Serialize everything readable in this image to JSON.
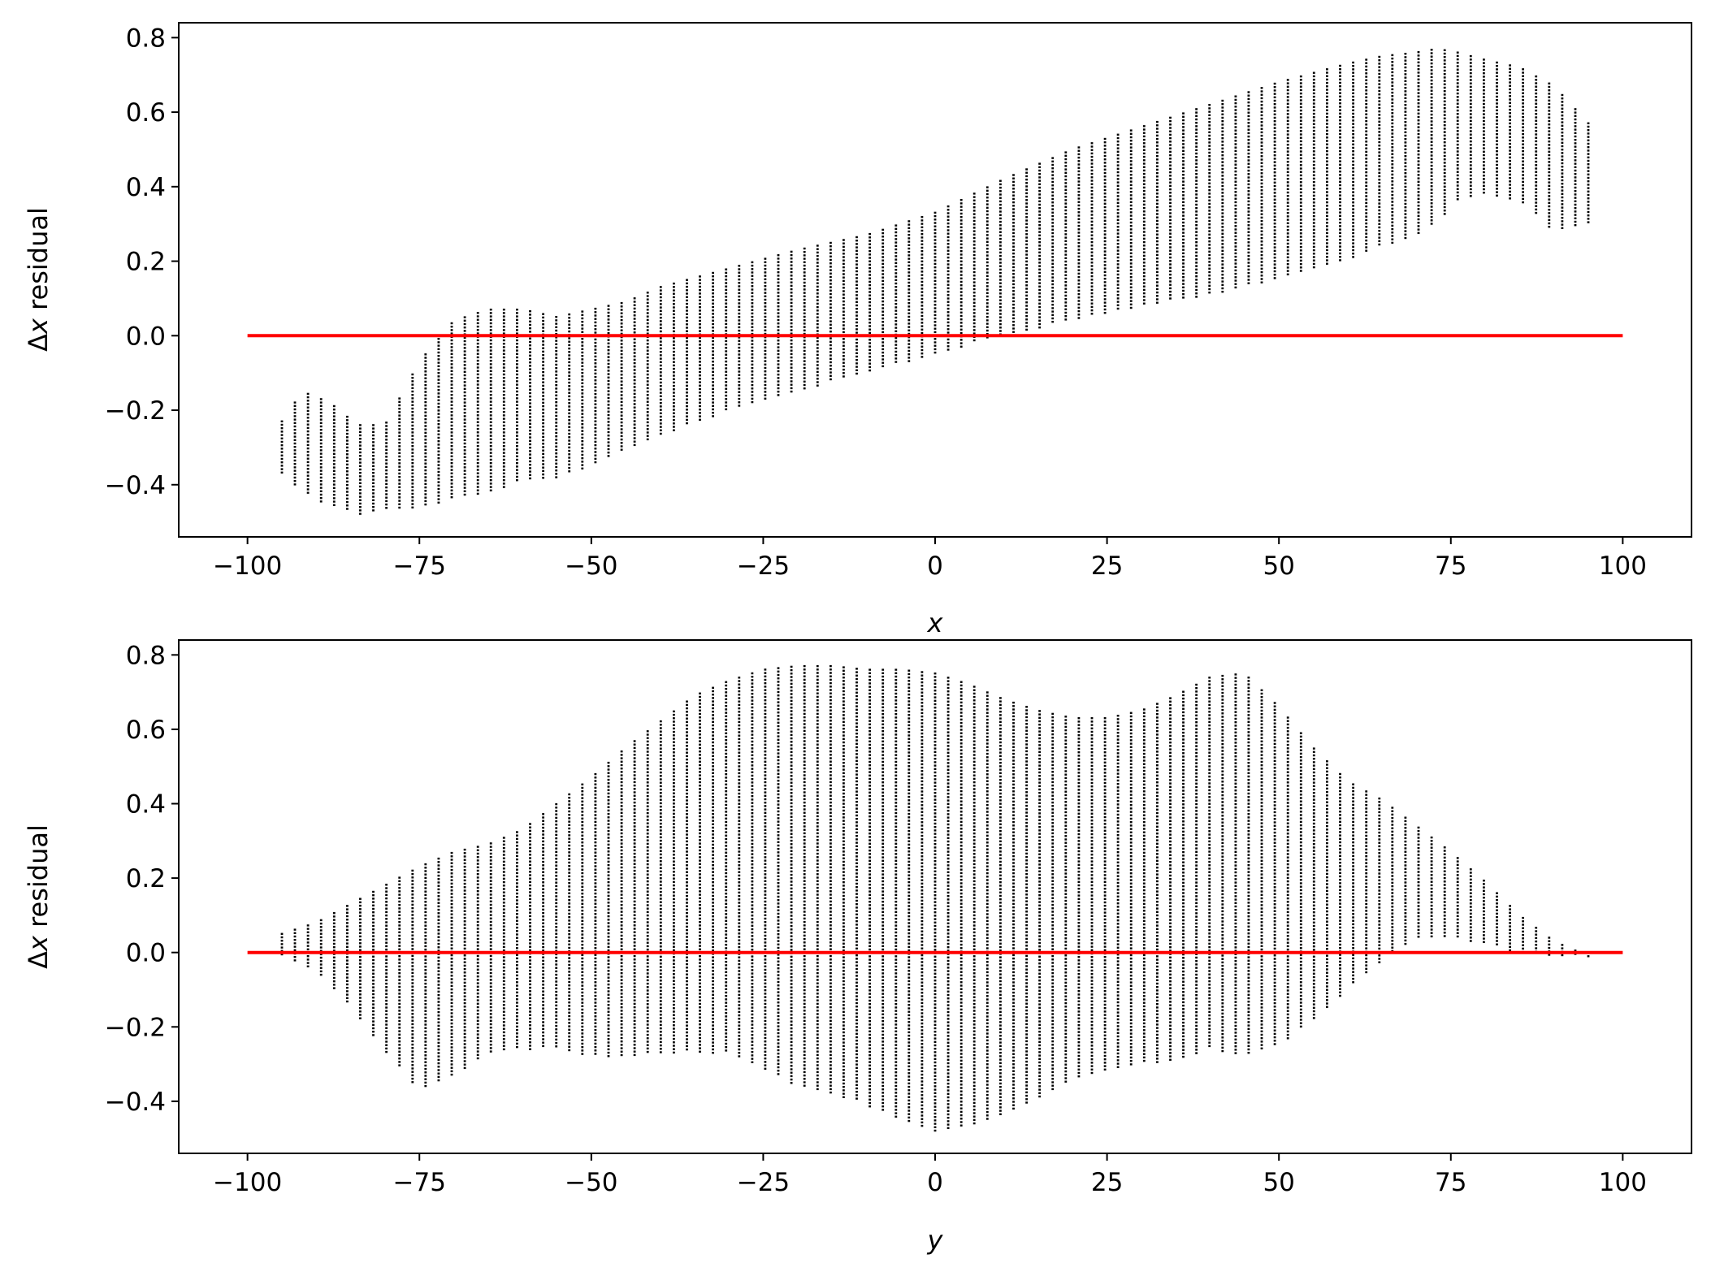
{
  "chart_data": [
    {
      "type": "scatter",
      "xlabel": "x",
      "ylabel_prefix": "Δ",
      "ylabel_var": "x",
      "ylabel_suffix": " residual",
      "xlim": [
        -110,
        110
      ],
      "ylim": [
        -0.54,
        0.84
      ],
      "xticks": [
        -100,
        -75,
        -50,
        -25,
        0,
        25,
        50,
        75,
        100
      ],
      "yticks": [
        -0.4,
        -0.2,
        0.0,
        0.2,
        0.4,
        0.6,
        0.8
      ],
      "xtick_labels": [
        "−100",
        "−75",
        "−50",
        "−25",
        "0",
        "25",
        "50",
        "75",
        "100"
      ],
      "ytick_labels": [
        "−0.4",
        "−0.2",
        "0.0",
        "0.2",
        "0.4",
        "0.6",
        "0.8"
      ],
      "point_color": "#000000",
      "columns": {
        "x_start": -95,
        "x_end": 95,
        "step": 1.9,
        "envelope_x": [
          -95,
          -92,
          -88,
          -84,
          -80,
          -75,
          -70,
          -65,
          -60,
          -55,
          -50,
          -45,
          -40,
          -30,
          -20,
          -10,
          0,
          10,
          20,
          30,
          40,
          50,
          60,
          65,
          70,
          73,
          76,
          80,
          85,
          90,
          95
        ],
        "envelope_upper": [
          -0.23,
          -0.15,
          -0.18,
          -0.24,
          -0.24,
          -0.07,
          0.04,
          0.07,
          0.07,
          0.05,
          0.07,
          0.09,
          0.13,
          0.18,
          0.23,
          0.27,
          0.33,
          0.42,
          0.5,
          0.56,
          0.62,
          0.68,
          0.73,
          0.75,
          0.76,
          0.77,
          0.76,
          0.74,
          0.72,
          0.67,
          0.57
        ],
        "envelope_lower": [
          -0.37,
          -0.42,
          -0.46,
          -0.48,
          -0.47,
          -0.46,
          -0.44,
          -0.42,
          -0.39,
          -0.38,
          -0.35,
          -0.31,
          -0.27,
          -0.2,
          -0.15,
          -0.1,
          -0.05,
          0.0,
          0.04,
          0.08,
          0.11,
          0.15,
          0.2,
          0.24,
          0.27,
          0.3,
          0.36,
          0.38,
          0.36,
          0.28,
          0.3
        ]
      },
      "reference_line": {
        "x": [
          -100,
          100
        ],
        "y": [
          0.0,
          0.0
        ],
        "color": "#ff0000"
      }
    },
    {
      "type": "scatter",
      "xlabel": "y",
      "ylabel_prefix": "Δ",
      "ylabel_var": "x",
      "ylabel_suffix": " residual",
      "xlim": [
        -110,
        110
      ],
      "ylim": [
        -0.54,
        0.84
      ],
      "xticks": [
        -100,
        -75,
        -50,
        -25,
        0,
        25,
        50,
        75,
        100
      ],
      "yticks": [
        -0.4,
        -0.2,
        0.0,
        0.2,
        0.4,
        0.6,
        0.8
      ],
      "xtick_labels": [
        "−100",
        "−75",
        "−50",
        "−25",
        "0",
        "25",
        "50",
        "75",
        "100"
      ],
      "ytick_labels": [
        "−0.4",
        "−0.2",
        "0.0",
        "0.2",
        "0.4",
        "0.6",
        "0.8"
      ],
      "point_color": "#000000",
      "columns": {
        "x_start": -95,
        "x_end": 95,
        "step": 1.9,
        "envelope_x": [
          -95,
          -90,
          -85,
          -80,
          -75,
          -70,
          -65,
          -60,
          -55,
          -50,
          -45,
          -40,
          -35,
          -30,
          -25,
          -20,
          -15,
          -10,
          -5,
          0,
          5,
          10,
          15,
          20,
          25,
          30,
          35,
          40,
          45,
          50,
          55,
          60,
          65,
          70,
          75,
          80,
          85,
          90,
          95
        ],
        "envelope_upper": [
          0.05,
          0.08,
          0.13,
          0.18,
          0.23,
          0.27,
          0.29,
          0.33,
          0.4,
          0.47,
          0.55,
          0.62,
          0.69,
          0.73,
          0.76,
          0.77,
          0.77,
          0.76,
          0.76,
          0.75,
          0.72,
          0.68,
          0.65,
          0.63,
          0.63,
          0.65,
          0.69,
          0.74,
          0.75,
          0.66,
          0.55,
          0.46,
          0.41,
          0.34,
          0.27,
          0.19,
          0.1,
          0.03,
          -0.01
        ],
        "envelope_lower": [
          -0.01,
          -0.05,
          -0.15,
          -0.27,
          -0.37,
          -0.33,
          -0.27,
          -0.26,
          -0.26,
          -0.28,
          -0.28,
          -0.27,
          -0.27,
          -0.27,
          -0.31,
          -0.36,
          -0.38,
          -0.41,
          -0.45,
          -0.48,
          -0.47,
          -0.44,
          -0.39,
          -0.34,
          -0.32,
          -0.3,
          -0.29,
          -0.26,
          -0.28,
          -0.25,
          -0.18,
          -0.1,
          -0.02,
          0.04,
          0.04,
          0.02,
          0.0,
          -0.01,
          -0.01
        ]
      },
      "reference_line": {
        "x": [
          -100,
          100
        ],
        "y": [
          0.0,
          0.0
        ],
        "color": "#ff0000"
      }
    }
  ]
}
